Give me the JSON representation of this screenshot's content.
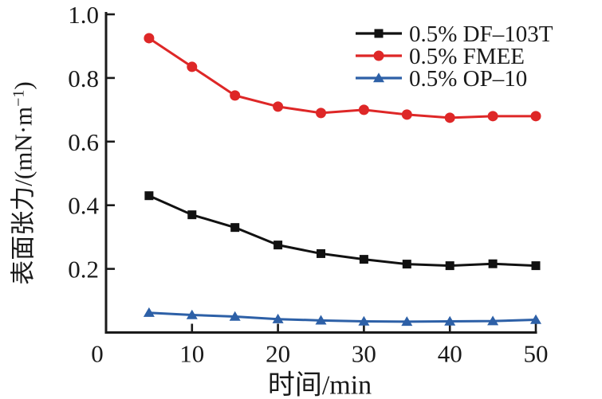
{
  "figure": {
    "background": "#ffffff"
  },
  "labels": {
    "ylabel_base": "表面张力/(mN·m",
    "ylabel_sup": "−1",
    "ylabel_close": ")"
  },
  "chart_data": {
    "type": "line",
    "title": "",
    "xlabel": "时间/min",
    "ylabel": "表面张力/(mN·m⁻¹)",
    "x": [
      5,
      10,
      15,
      20,
      25,
      30,
      35,
      40,
      45,
      50
    ],
    "xlim": [
      0,
      50
    ],
    "ylim": [
      0,
      1.0
    ],
    "x_tick_values": [
      0,
      10,
      20,
      30,
      40,
      50
    ],
    "x_tick_labels": [
      "0",
      "10",
      "20",
      "30",
      "40",
      "50"
    ],
    "y_tick_values": [
      0,
      0.2,
      0.4,
      0.6,
      0.8,
      1.0
    ],
    "y_tick_labels": [
      "0",
      "0.2",
      "0.4",
      "0.6",
      "0.8",
      "1.0"
    ],
    "grid": false,
    "legend_position": "upper-right",
    "axis_color": "#1a1a1a",
    "series": [
      {
        "name": "0.5% DF–103T",
        "marker": "square",
        "color": "#111111",
        "values": [
          0.43,
          0.37,
          0.33,
          0.275,
          0.248,
          0.23,
          0.215,
          0.21,
          0.216,
          0.21
        ]
      },
      {
        "name": "0.5% FMEE",
        "marker": "circle",
        "color": "#de2727",
        "values": [
          0.925,
          0.835,
          0.745,
          0.71,
          0.69,
          0.7,
          0.685,
          0.675,
          0.68,
          0.68
        ]
      },
      {
        "name": "0.5% OP–10",
        "marker": "triangle",
        "color": "#2d60a7",
        "values": [
          0.062,
          0.055,
          0.05,
          0.042,
          0.038,
          0.035,
          0.034,
          0.035,
          0.036,
          0.04
        ]
      }
    ]
  }
}
